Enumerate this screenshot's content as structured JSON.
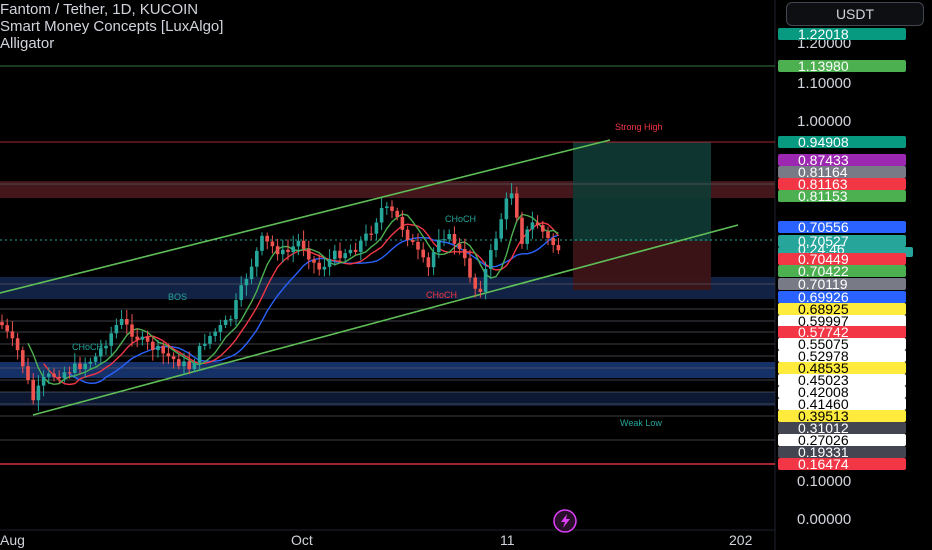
{
  "legend": {
    "title": "Fantom / Tether, 1D, KUCOIN",
    "indicator1": "Smart Money Concepts [LuxAlgo]",
    "indicator2": "Alligator"
  },
  "currency_button": "USDT",
  "colors": {
    "background": "#000000",
    "up": "#26a69a",
    "down": "#ef5350",
    "channel": "#5fbf57",
    "jaw": "#2962ff",
    "teeth": "#f23645",
    "lips": "#4caf50",
    "supply_zone": "#5a1f24",
    "demand_zone": "#152a55",
    "long_profit": "#0f3b35",
    "long_loss": "#3c1417"
  },
  "chart_data": {
    "type": "candlestick",
    "symbol": "Fantom / Tether",
    "interval": "1D",
    "exchange": "KUCOIN",
    "y_scale": "log",
    "x_tick_labels": [
      "Aug",
      "Oct",
      "11",
      "202"
    ],
    "y_tick_labels": [
      "1.20000",
      "1.10000",
      "1.00000",
      "0.10000",
      "0.00000"
    ],
    "annotations": [
      "Strong High",
      "Weak Low",
      "BOS",
      "CHoCH",
      "CHoCH",
      "CHoCH"
    ],
    "price_labels": [
      {
        "value": "1.22018",
        "color": "#089981"
      },
      {
        "value": "1.13980",
        "color": "#4caf50"
      },
      {
        "value": "0.94908",
        "color": "#089981"
      },
      {
        "value": "0.87433",
        "color": "#9c27b0"
      },
      {
        "value": "0.81164",
        "color": "#787b86"
      },
      {
        "value": "0.81163",
        "color": "#f23645"
      },
      {
        "value": "0.81153",
        "color": "#4caf50"
      },
      {
        "value": "0.70556",
        "color": "#2962ff"
      },
      {
        "value": "0.70527",
        "color": "#26a69a"
      },
      {
        "value": "0:24:46",
        "color": "#26a69a"
      },
      {
        "value": "0.70449",
        "color": "#f23645"
      },
      {
        "value": "0.70422",
        "color": "#4caf50"
      },
      {
        "value": "0.70119",
        "color": "#787b86"
      },
      {
        "value": "0.69926",
        "color": "#2962ff"
      },
      {
        "value": "0.68925",
        "color": "#ffeb3b"
      },
      {
        "value": "0.59997",
        "color": "#ffffff"
      },
      {
        "value": "0.57742",
        "color": "#f23645"
      },
      {
        "value": "0.55075",
        "color": "#ffffff"
      },
      {
        "value": "0.52978",
        "color": "#ffffff"
      },
      {
        "value": "0.48535",
        "color": "#ffeb3b"
      },
      {
        "value": "0.45023",
        "color": "#ffffff"
      },
      {
        "value": "0.42008",
        "color": "#ffffff"
      },
      {
        "value": "0.41460",
        "color": "#ffffff"
      },
      {
        "value": "0.39513",
        "color": "#ffeb3b"
      },
      {
        "value": "0.31012",
        "color": "#434651"
      },
      {
        "value": "0.27026",
        "color": "#ffffff"
      },
      {
        "value": "0.19331",
        "color": "#434651"
      },
      {
        "value": "0.16474",
        "color": "#f23645"
      }
    ]
  }
}
